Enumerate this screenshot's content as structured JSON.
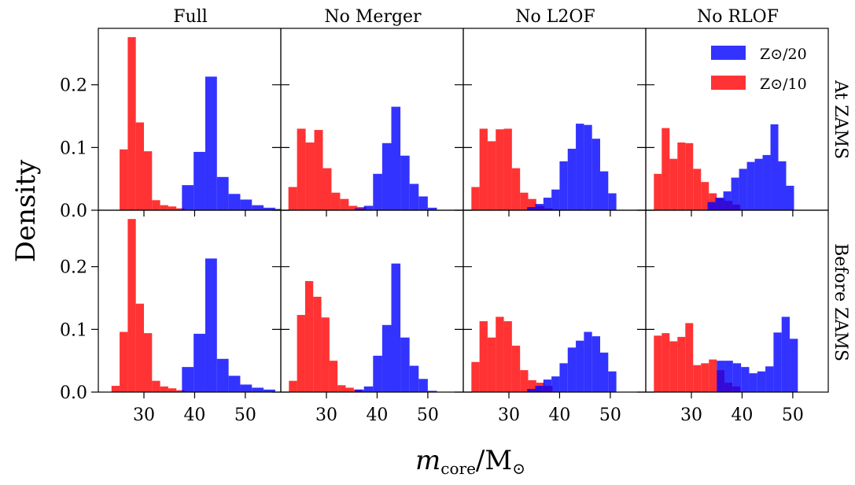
{
  "figure": {
    "ylabel": "Density",
    "xlabel_main": "m",
    "xlabel_sub": "core",
    "xlabel_unit": "/M",
    "sun_symbol": "⊙"
  },
  "columns": [
    "Full",
    "No Merger",
    "No L2OF",
    "No RLOF"
  ],
  "rows": [
    "At ZAMS",
    "Before ZAMS"
  ],
  "legend": {
    "placement": "top-right of last top panel",
    "entries": [
      {
        "label": "Z⊙/20",
        "color": "#0000ff"
      },
      {
        "label": "Z⊙/10",
        "color": "#ff0000"
      }
    ]
  },
  "chart_data": {
    "type": "histogram",
    "bar_alpha": 0.8,
    "xlim": [
      21,
      57
    ],
    "ylim": [
      0,
      0.29
    ],
    "xticks": [
      30,
      40,
      50
    ],
    "yticks": [
      0.0,
      0.1,
      0.2
    ],
    "ytick_labels": [
      "0.0",
      "0.1",
      "0.2"
    ],
    "panels": [
      {
        "row": "At ZAMS",
        "column": "Full",
        "series": [
          {
            "name": "Z⊙/10",
            "color": "#ff0000",
            "start": 23.6,
            "width": 1.6,
            "values": [
              0.0,
              0.097,
              0.276,
              0.14,
              0.094,
              0.016,
              0.008,
              0.006,
              0.003
            ]
          },
          {
            "name": "Z⊙/20",
            "color": "#0000ff",
            "start": 37.5,
            "width": 2.3,
            "values": [
              0.04,
              0.093,
              0.213,
              0.053,
              0.026,
              0.017,
              0.008,
              0.004,
              0.002
            ]
          }
        ]
      },
      {
        "row": "At ZAMS",
        "column": "No Merger",
        "series": [
          {
            "name": "Z⊙/10",
            "color": "#ff0000",
            "start": 22.5,
            "width": 1.7,
            "values": [
              0.037,
              0.13,
              0.108,
              0.128,
              0.067,
              0.028,
              0.018,
              0.007,
              0.005,
              0.0
            ]
          },
          {
            "name": "Z⊙/20",
            "color": "#0000ff",
            "start": 35.6,
            "width": 1.8,
            "values": [
              0.003,
              0.007,
              0.058,
              0.107,
              0.165,
              0.087,
              0.042,
              0.022,
              0.004
            ]
          }
        ]
      },
      {
        "row": "At ZAMS",
        "column": "No L2OF",
        "series": [
          {
            "name": "Z⊙/10",
            "color": "#ff0000",
            "start": 22.6,
            "width": 1.6,
            "values": [
              0.037,
              0.13,
              0.11,
              0.129,
              0.13,
              0.067,
              0.028,
              0.018,
              0.007,
              0.003
            ]
          },
          {
            "name": "Z⊙/20",
            "color": "#0000ff",
            "start": 33.6,
            "width": 1.6,
            "values": [
              0.005,
              0.01,
              0.02,
              0.033,
              0.078,
              0.098,
              0.138,
              0.136,
              0.114,
              0.062,
              0.027
            ]
          }
        ]
      },
      {
        "row": "At ZAMS",
        "column": "No RLOF",
        "series": [
          {
            "name": "Z⊙/10",
            "color": "#ff0000",
            "start": 22.6,
            "width": 1.55,
            "values": [
              0.058,
              0.131,
              0.082,
              0.108,
              0.107,
              0.066,
              0.045,
              0.027,
              0.019,
              0.015,
              0.009
            ]
          },
          {
            "name": "Z⊙/20",
            "color": "#0000ff",
            "start": 33.2,
            "width": 1.55,
            "values": [
              0.013,
              0.02,
              0.03,
              0.052,
              0.066,
              0.077,
              0.082,
              0.088,
              0.137,
              0.078,
              0.039
            ]
          }
        ]
      },
      {
        "row": "Before ZAMS",
        "column": "Full",
        "series": [
          {
            "name": "Z⊙/10",
            "color": "#ff0000",
            "start": 23.6,
            "width": 1.6,
            "values": [
              0.01,
              0.096,
              0.276,
              0.141,
              0.094,
              0.018,
              0.009,
              0.006,
              0.003
            ]
          },
          {
            "name": "Z⊙/20",
            "color": "#0000ff",
            "start": 37.5,
            "width": 2.3,
            "values": [
              0.04,
              0.093,
              0.213,
              0.053,
              0.026,
              0.012,
              0.007,
              0.004
            ]
          }
        ]
      },
      {
        "row": "Before ZAMS",
        "column": "No Merger",
        "series": [
          {
            "name": "Z⊙/10",
            "color": "#ff0000",
            "start": 22.6,
            "width": 1.6,
            "values": [
              0.018,
              0.123,
              0.177,
              0.152,
              0.119,
              0.05,
              0.011,
              0.007,
              0.004
            ]
          },
          {
            "name": "Z⊙/20",
            "color": "#0000ff",
            "start": 35.6,
            "width": 1.8,
            "values": [
              0.004,
              0.009,
              0.058,
              0.107,
              0.205,
              0.087,
              0.042,
              0.021,
              0.002
            ]
          }
        ]
      },
      {
        "row": "Before ZAMS",
        "column": "No L2OF",
        "series": [
          {
            "name": "Z⊙/10",
            "color": "#ff0000",
            "start": 22.6,
            "width": 1.6,
            "values": [
              0.048,
              0.113,
              0.087,
              0.12,
              0.113,
              0.074,
              0.035,
              0.019,
              0.015,
              0.01
            ]
          },
          {
            "name": "Z⊙/20",
            "color": "#0000ff",
            "start": 33.6,
            "width": 1.6,
            "values": [
              0.005,
              0.01,
              0.02,
              0.025,
              0.046,
              0.071,
              0.082,
              0.096,
              0.089,
              0.063,
              0.033
            ]
          }
        ]
      },
      {
        "row": "Before ZAMS",
        "column": "No RLOF",
        "series": [
          {
            "name": "Z⊙/10",
            "color": "#ff0000",
            "start": 22.6,
            "width": 1.55,
            "values": [
              0.09,
              0.094,
              0.081,
              0.088,
              0.11,
              0.043,
              0.046,
              0.052,
              0.035,
              0.015,
              0.009
            ]
          },
          {
            "name": "Z⊙/20",
            "color": "#0000ff",
            "start": 35.0,
            "width": 1.6,
            "values": [
              0.05,
              0.05,
              0.046,
              0.04,
              0.03,
              0.033,
              0.041,
              0.095,
              0.12,
              0.085
            ]
          }
        ]
      }
    ]
  }
}
